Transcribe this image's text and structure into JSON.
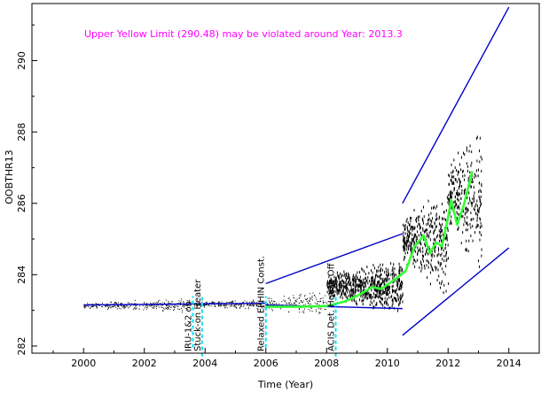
{
  "chart_data": {
    "type": "scatter",
    "title": "",
    "xlabel": "Time (Year)",
    "ylabel": "OOBTHR13",
    "xlim": [
      1998.3,
      2015.0
    ],
    "ylim": [
      281.8,
      291.6
    ],
    "x_ticks": [
      2000,
      2002,
      2004,
      2006,
      2008,
      2010,
      2012,
      2014
    ],
    "x_tick_labels": [
      "2000",
      "2002",
      "2004",
      "2006",
      "2008",
      "2010",
      "2012",
      "2014"
    ],
    "y_ticks": [
      282,
      284,
      286,
      288,
      290
    ],
    "y_tick_labels": [
      "282",
      "284",
      "286",
      "288",
      "290"
    ],
    "grid": false,
    "annotation": {
      "text": "Upper Yellow  Limit (290.48) may be violated around Year: 2013.3",
      "color": "#ff00ff"
    },
    "events": [
      {
        "label": "IRU-1&2 on",
        "x": 2003.6,
        "color": "#00e5ee"
      },
      {
        "label": "Stuck-on Heater",
        "x": 2003.9,
        "color": "#00e5ee"
      },
      {
        "label": "Relaxed EPHIN Const.",
        "x": 2006.0,
        "color": "#00e5ee"
      },
      {
        "label": "ACIS Det. House Off",
        "x": 2008.3,
        "color": "#00e5ee"
      }
    ],
    "trend_lines": [
      {
        "name": "",
        "color": "#0000cc",
        "points": [
          [
            2000.0,
            283.15
          ],
          [
            2006.0,
            283.2
          ]
        ]
      },
      {
        "name": "",
        "color": "#0000cc",
        "points": [
          [
            2006.0,
            283.15
          ],
          [
            2010.5,
            283.05
          ]
        ]
      },
      {
        "name": "",
        "color": "#0000cc",
        "points": [
          [
            2006.0,
            283.75
          ],
          [
            2010.5,
            285.15
          ]
        ]
      },
      {
        "name": "",
        "color": "#0000cc",
        "points": [
          [
            2010.5,
            286.0
          ],
          [
            2014.0,
            291.5
          ]
        ]
      },
      {
        "name": "",
        "color": "#0000cc",
        "points": [
          [
            2010.5,
            282.3
          ],
          [
            2014.0,
            284.75
          ]
        ]
      }
    ],
    "moving_average": {
      "color": "#33ff33",
      "points": [
        [
          2006.0,
          283.1
        ],
        [
          2007.0,
          283.1
        ],
        [
          2008.0,
          283.12
        ],
        [
          2008.6,
          283.25
        ],
        [
          2009.0,
          283.4
        ],
        [
          2009.5,
          283.65
        ],
        [
          2009.8,
          283.6
        ],
        [
          2010.3,
          283.9
        ],
        [
          2010.6,
          284.1
        ],
        [
          2010.9,
          284.8
        ],
        [
          2011.2,
          285.1
        ],
        [
          2011.4,
          284.6
        ],
        [
          2011.6,
          284.9
        ],
        [
          2011.8,
          284.8
        ],
        [
          2012.0,
          285.6
        ],
        [
          2012.1,
          286.1
        ],
        [
          2012.3,
          285.4
        ],
        [
          2012.5,
          285.9
        ],
        [
          2012.8,
          286.9
        ]
      ]
    },
    "scatter_summary": {
      "color": "#000000",
      "segments": [
        {
          "x_range": [
            2000.0,
            2003.5
          ],
          "center": 283.15,
          "spread": 0.15
        },
        {
          "x_range": [
            2003.5,
            2006.0
          ],
          "center": 283.18,
          "spread": 0.12
        },
        {
          "x_range": [
            2006.0,
            2008.0
          ],
          "center": 283.2,
          "spread": 0.3
        },
        {
          "x_range": [
            2008.0,
            2010.5
          ],
          "center": 283.7,
          "spread": 0.6
        },
        {
          "x_range": [
            2010.5,
            2012.0
          ],
          "center": 285.0,
          "spread": 1.2
        },
        {
          "x_range": [
            2012.0,
            2013.1
          ],
          "center": 286.2,
          "spread": 1.6
        }
      ]
    }
  }
}
